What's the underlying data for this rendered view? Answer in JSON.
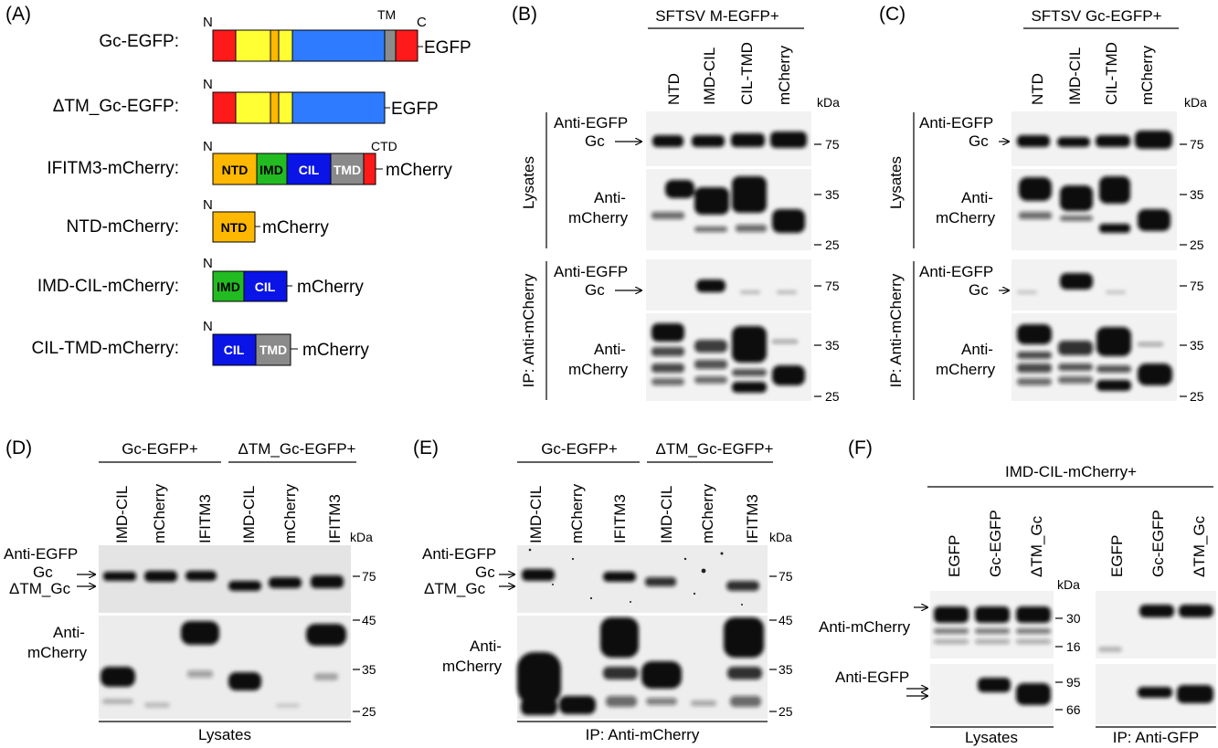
{
  "colors": {
    "red": "#ff1a1a",
    "yellow": "#ffff33",
    "orange": "#ffb800",
    "blue": "#2f7bff",
    "gray": "#8c8c8c",
    "green": "#22bb22",
    "deep_blue": "#0a14e6",
    "tmd_gray": "#8a8a8a"
  },
  "panel_labels": {
    "A": "(A)",
    "B": "(B)",
    "C": "(C)",
    "D": "(D)",
    "E": "(E)",
    "F": "(F)"
  },
  "panel_a": {
    "constructs": [
      "Gc-EGFP:",
      "ΔTM_Gc-EGFP:",
      "IFITM3-mCherry:",
      "NTD-mCherry:",
      "IMD-CIL-mCherry:",
      "CIL-TMD-mCherry:"
    ],
    "n": "N",
    "c": "C",
    "tm": "TM",
    "ctd": "CTD",
    "egfp": "EGFP",
    "mcherry": "mCherry",
    "ntd": "NTD",
    "imd": "IMD",
    "cil": "CIL",
    "tmd": "TMD"
  },
  "panel_b": {
    "header": "SFTSV M-EGFP+",
    "lanes": [
      "NTD",
      "IMD-CIL",
      "CIL-TMD",
      "mCherry"
    ],
    "kda": "kDa",
    "lysates": "Lysates",
    "ip": "IP: Anti-mCherry",
    "anti_egfp": "Anti-EGFP",
    "gc": "Gc",
    "anti": "Anti-",
    "mcherry": "mCherry",
    "markers": [
      "75",
      "35",
      "25",
      "75",
      "35",
      "25"
    ]
  },
  "panel_c": {
    "header": "SFTSV Gc-EGFP+",
    "lanes": [
      "NTD",
      "IMD-CIL",
      "CIL-TMD",
      "mCherry"
    ],
    "kda": "kDa",
    "lysates": "Lysates",
    "ip": "IP: Anti-mCherry",
    "anti_egfp": "Anti-EGFP",
    "gc": "Gc",
    "anti": "Anti-",
    "mcherry": "mCherry",
    "markers": [
      "75",
      "35",
      "25",
      "75",
      "35",
      "25"
    ]
  },
  "panel_d": {
    "group1": "Gc-EGFP+",
    "group2": "ΔTM_Gc-EGFP+",
    "lanes": [
      "IMD-CIL",
      "mCherry",
      "IFITM3",
      "IMD-CIL",
      "mCherry",
      "IFITM3"
    ],
    "kda": "kDa",
    "anti_egfp": "Anti-EGFP",
    "gc": "Gc",
    "dtm_gc": "ΔTM_Gc",
    "anti": "Anti-",
    "mcherry": "mCherry",
    "markers": [
      "75",
      "45",
      "35",
      "25"
    ],
    "footer": "Lysates"
  },
  "panel_e": {
    "group1": "Gc-EGFP+",
    "group2": "ΔTM_Gc-EGFP+",
    "lanes": [
      "IMD-CIL",
      "mCherry",
      "IFITM3",
      "IMD-CIL",
      "mCherry",
      "IFITM3"
    ],
    "kda": "kDa",
    "anti_egfp": "Anti-EGFP",
    "gc": "Gc",
    "dtm_gc": "ΔTM_Gc",
    "anti": "Anti-",
    "mcherry": "mCherry",
    "markers": [
      "75",
      "45",
      "35",
      "25"
    ],
    "footer": "IP: Anti-mCherry"
  },
  "panel_f": {
    "header": "IMD-CIL-mCherry+",
    "lanes": [
      "EGFP",
      "Gc-EGFP",
      "ΔTM_Gc",
      "EGFP",
      "Gc-EGFP",
      "ΔTM_Gc"
    ],
    "kda": "kDa",
    "anti_mcherry": "Anti-mCherry",
    "anti_egfp": "Anti-EGFP",
    "markers": [
      "30",
      "16",
      "95",
      "66"
    ],
    "footer1": "Lysates",
    "footer2": "IP: Anti-GFP"
  }
}
